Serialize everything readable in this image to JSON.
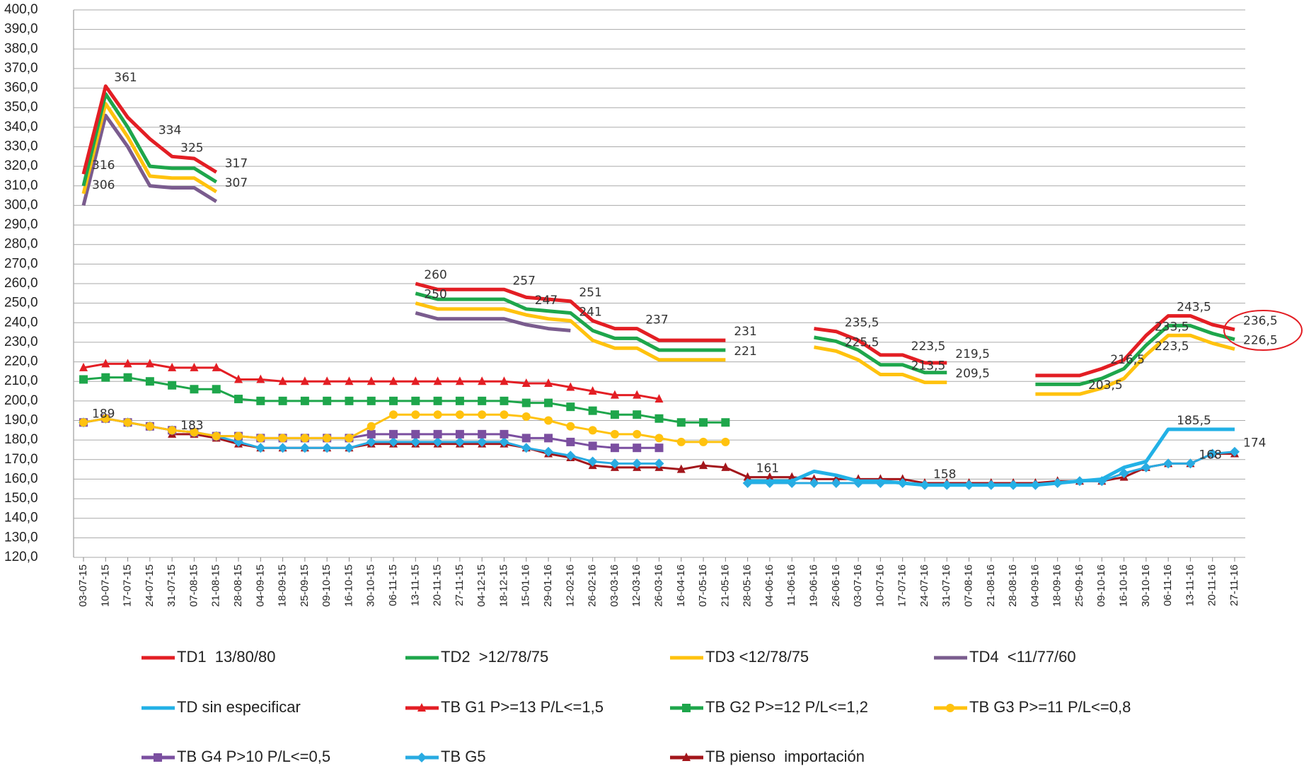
{
  "chart_data": {
    "type": "line",
    "grid": true,
    "categories": [
      "03-07-15",
      "10-07-15",
      "17-07-15",
      "24-07-15",
      "31-07-15",
      "07-08-15",
      "21-08-15",
      "28-08-15",
      "04-09-15",
      "18-09-15",
      "25-09-15",
      "09-10-15",
      "16-10-15",
      "30-10-15",
      "06-11-15",
      "13-11-15",
      "20-11-15",
      "27-11-15",
      "04-12-15",
      "18-12-15",
      "15-01-16",
      "29-01-16",
      "12-02-16",
      "26-02-16",
      "03-03-16",
      "12-03-16",
      "26-03-16",
      "16-04-16",
      "07-05-16",
      "21-05-16",
      "28-05-16",
      "04-06-16",
      "11-06-16",
      "19-06-16",
      "26-06-16",
      "03-07-16",
      "10-07-16",
      "17-07-16",
      "24-07-16",
      "31-07-16",
      "07-08-16",
      "21-08-16",
      "28-08-16",
      "04-09-16",
      "18-09-16",
      "25-09-16",
      "09-10-16",
      "16-10-16",
      "30-10-16",
      "06-11-16",
      "13-11-16",
      "20-11-16",
      "27-11-16"
    ],
    "ylim": [
      120,
      400
    ],
    "yticks": [
      {
        "value": 120,
        "label": "120,0"
      },
      {
        "value": 130,
        "label": "130,0"
      },
      {
        "value": 140,
        "label": "140,0"
      },
      {
        "value": 150,
        "label": "150,0"
      },
      {
        "value": 160,
        "label": "160,0"
      },
      {
        "value": 170,
        "label": "170,0"
      },
      {
        "value": 180,
        "label": "180,0"
      },
      {
        "value": 190,
        "label": "190,0"
      },
      {
        "value": 200,
        "label": "200,0"
      },
      {
        "value": 210,
        "label": "210,0"
      },
      {
        "value": 220,
        "label": "220,0"
      },
      {
        "value": 230,
        "label": "230,0"
      },
      {
        "value": 240,
        "label": "240,0"
      },
      {
        "value": 250,
        "label": "250,0"
      },
      {
        "value": 260,
        "label": "260,0"
      },
      {
        "value": 270,
        "label": "270,0"
      },
      {
        "value": 280,
        "label": "280,0"
      },
      {
        "value": 290,
        "label": "290,0"
      },
      {
        "value": 300,
        "label": "300,0"
      },
      {
        "value": 310,
        "label": "310,0"
      },
      {
        "value": 320,
        "label": "320,0"
      },
      {
        "value": 330,
        "label": "330,0"
      },
      {
        "value": 340,
        "label": "340,0"
      },
      {
        "value": 350,
        "label": "350,0"
      },
      {
        "value": 360,
        "label": "360,0"
      },
      {
        "value": 370,
        "label": "370,0"
      },
      {
        "value": 380,
        "label": "380,0"
      },
      {
        "value": 390,
        "label": "390,0"
      },
      {
        "value": 400,
        "label": "400,0"
      }
    ],
    "series": [
      {
        "name": "TD1  13/80/80",
        "color": "#e31e24",
        "marker": "none",
        "values": [
          316,
          361,
          345,
          334,
          325,
          324,
          317,
          null,
          null,
          null,
          null,
          null,
          null,
          null,
          null,
          260,
          257,
          257,
          257,
          257,
          253,
          252,
          251,
          241,
          237,
          237,
          231,
          231,
          231,
          231,
          null,
          null,
          null,
          237,
          235.5,
          231,
          223.5,
          223.5,
          219.5,
          219.5,
          null,
          null,
          null,
          213,
          213,
          213,
          216.5,
          221,
          233.5,
          243.5,
          243.5,
          239,
          236.5
        ],
        "value_labels": [
          "316",
          "361",
          null,
          "334",
          "325",
          null,
          "317",
          null,
          null,
          null,
          null,
          null,
          null,
          null,
          null,
          "260",
          null,
          null,
          null,
          "257",
          null,
          null,
          "251",
          null,
          null,
          "237",
          null,
          null,
          null,
          "231",
          null,
          null,
          null,
          null,
          "235,5",
          null,
          null,
          "223,5",
          null,
          "219,5",
          null,
          null,
          null,
          null,
          null,
          null,
          "216,5",
          null,
          "233,5",
          "243,5",
          null,
          null,
          "236,5"
        ]
      },
      {
        "name": "TD2  >12/78/75",
        "color": "#1ea64b",
        "marker": "none",
        "values": [
          310,
          357,
          340,
          320,
          319,
          319,
          312,
          null,
          null,
          null,
          null,
          null,
          null,
          null,
          null,
          255,
          252,
          252,
          252,
          252,
          247,
          246,
          245,
          236,
          232,
          232,
          226,
          226,
          226,
          226,
          null,
          null,
          null,
          232.5,
          230.5,
          226,
          218.5,
          218.5,
          214.5,
          214.5,
          null,
          null,
          null,
          208.5,
          208.5,
          208.5,
          211.5,
          216.5,
          228.5,
          238.5,
          238.5,
          234.5,
          231.5
        ],
        "value_labels": [
          null,
          null,
          null,
          null,
          null,
          null,
          null,
          null,
          null,
          null,
          null,
          null,
          null,
          null,
          null,
          null,
          null,
          null,
          null,
          null,
          "247",
          null,
          null,
          null,
          null,
          null,
          null,
          null,
          null,
          null,
          null,
          null,
          null,
          null,
          null,
          null,
          null,
          null,
          null,
          null,
          null,
          null,
          null,
          null,
          null,
          null,
          null,
          null,
          null,
          null,
          null,
          null,
          null
        ]
      },
      {
        "name": "TD3 <12/78/75",
        "color": "#ffc20e",
        "marker": "none",
        "values": [
          306,
          352,
          335,
          315,
          314,
          314,
          307,
          null,
          null,
          null,
          null,
          null,
          null,
          null,
          null,
          250,
          247,
          247,
          247,
          247,
          244,
          242,
          241,
          231,
          227,
          227,
          221,
          221,
          221,
          221,
          null,
          null,
          null,
          227.5,
          225.5,
          221,
          213.5,
          213.5,
          209.5,
          209.5,
          null,
          null,
          null,
          203.5,
          203.5,
          203.5,
          206.5,
          211.5,
          223.5,
          233.5,
          233.5,
          229.5,
          226.5
        ],
        "value_labels": [
          "306",
          null,
          null,
          null,
          null,
          null,
          "307",
          null,
          null,
          null,
          null,
          null,
          null,
          null,
          null,
          "250",
          null,
          null,
          null,
          null,
          null,
          null,
          "241",
          null,
          null,
          null,
          null,
          null,
          null,
          "221",
          null,
          null,
          null,
          null,
          "225,5",
          null,
          null,
          "213,5",
          null,
          "209,5",
          null,
          null,
          null,
          null,
          null,
          "203,5",
          null,
          null,
          "223,5",
          null,
          null,
          null,
          "226,5"
        ]
      },
      {
        "name": "TD4  <11/77/60",
        "color": "#7a5c8e",
        "marker": "none",
        "values": [
          300,
          346,
          330,
          310,
          309,
          309,
          302,
          null,
          null,
          null,
          null,
          null,
          null,
          null,
          null,
          245,
          242,
          242,
          242,
          242,
          239,
          237,
          236,
          null,
          null,
          null,
          null,
          null,
          null,
          null,
          null,
          null,
          null,
          null,
          null,
          null,
          null,
          null,
          null,
          null,
          null,
          null,
          null,
          null,
          null,
          null,
          null,
          null,
          null,
          null,
          null,
          null,
          null
        ]
      },
      {
        "name": "TD sin especificar",
        "color": "#22b1e6",
        "marker": "none",
        "values": [
          null,
          null,
          null,
          null,
          null,
          null,
          null,
          null,
          null,
          null,
          null,
          null,
          null,
          null,
          null,
          null,
          null,
          null,
          null,
          null,
          null,
          null,
          null,
          null,
          null,
          null,
          null,
          null,
          null,
          null,
          159,
          159,
          159,
          164,
          162,
          159,
          159,
          158,
          157,
          157,
          157,
          157,
          157,
          157,
          158,
          159,
          160,
          166,
          169,
          185.5,
          185.5,
          185.5,
          185.5
        ],
        "value_labels": [
          null,
          null,
          null,
          null,
          null,
          null,
          null,
          null,
          null,
          null,
          null,
          null,
          null,
          null,
          null,
          null,
          null,
          null,
          null,
          null,
          null,
          null,
          null,
          null,
          null,
          null,
          null,
          null,
          null,
          null,
          null,
          null,
          null,
          null,
          null,
          null,
          null,
          null,
          null,
          null,
          null,
          null,
          null,
          null,
          null,
          null,
          null,
          null,
          null,
          "185,5",
          null,
          null,
          null
        ]
      },
      {
        "name": "TB G1 P>=13 P/L<=1,5",
        "color": "#e31e24",
        "marker": "triangle",
        "values": [
          217,
          219,
          219,
          219,
          217,
          217,
          217,
          211,
          211,
          210,
          210,
          210,
          210,
          210,
          210,
          210,
          210,
          210,
          210,
          210,
          209,
          209,
          207,
          205,
          203,
          203,
          201,
          null,
          null,
          null,
          null,
          null,
          null,
          null,
          null,
          null,
          null,
          null,
          null,
          null,
          null,
          null,
          null,
          null,
          null,
          null,
          null,
          null,
          null,
          null,
          null,
          null,
          null
        ]
      },
      {
        "name": "TB G2 P>=12 P/L<=1,2",
        "color": "#1ea64b",
        "marker": "square",
        "values": [
          211,
          212,
          212,
          210,
          208,
          206,
          206,
          201,
          200,
          200,
          200,
          200,
          200,
          200,
          200,
          200,
          200,
          200,
          200,
          200,
          199,
          199,
          197,
          195,
          193,
          193,
          191,
          189,
          189,
          189,
          null,
          null,
          null,
          null,
          null,
          null,
          null,
          null,
          null,
          null,
          null,
          null,
          null,
          null,
          null,
          null,
          null,
          null,
          null,
          null,
          null,
          null,
          null
        ]
      },
      {
        "name": "TB G3 P>=11 P/L<=0,8",
        "color": "#ffc20e",
        "marker": "circle",
        "values": [
          189,
          191,
          189,
          187,
          185,
          184,
          182,
          182,
          181,
          181,
          181,
          181,
          181,
          187,
          193,
          193,
          193,
          193,
          193,
          193,
          192,
          190,
          187,
          185,
          183,
          183,
          181,
          179,
          179,
          179,
          null,
          null,
          null,
          null,
          null,
          null,
          null,
          null,
          null,
          null,
          null,
          null,
          null,
          null,
          null,
          null,
          null,
          null,
          null,
          null,
          null,
          null,
          null
        ]
      },
      {
        "name": "TB G4 P>10 P/L<=0,5",
        "color": "#7b4fa0",
        "marker": "square",
        "values": [
          189,
          191,
          189,
          187,
          185,
          184,
          182,
          182,
          181,
          181,
          181,
          181,
          181,
          183,
          183,
          183,
          183,
          183,
          183,
          183,
          181,
          181,
          179,
          177,
          176,
          176,
          176,
          null,
          null,
          null,
          null,
          null,
          null,
          null,
          null,
          null,
          null,
          null,
          null,
          null,
          null,
          null,
          null,
          null,
          null,
          null,
          null,
          null,
          null,
          null,
          null,
          null,
          null
        ]
      },
      {
        "name": "TB G5",
        "color": "#29abe2",
        "marker": "diamond",
        "values": [
          189,
          191,
          189,
          187,
          185,
          184,
          182,
          179,
          176,
          176,
          176,
          176,
          176,
          179,
          179,
          179,
          179,
          179,
          179,
          179,
          176,
          174,
          172,
          169,
          168,
          168,
          168,
          null,
          null,
          null,
          158,
          158,
          158,
          158,
          158,
          158,
          158,
          158,
          157,
          157,
          157,
          157,
          157,
          157,
          158,
          159,
          159,
          163,
          166,
          168,
          168,
          173,
          174
        ],
        "value_labels": [
          "189",
          null,
          null,
          null,
          null,
          null,
          null,
          null,
          null,
          null,
          null,
          null,
          null,
          null,
          null,
          null,
          null,
          null,
          null,
          null,
          null,
          null,
          null,
          null,
          null,
          null,
          null,
          null,
          null,
          null,
          null,
          null,
          null,
          null,
          null,
          null,
          null,
          null,
          null,
          null,
          null,
          null,
          null,
          null,
          null,
          null,
          null,
          null,
          null,
          null,
          null,
          null,
          "174"
        ]
      },
      {
        "name": "TB pienso  importación",
        "color": "#a3161b",
        "marker": "triangle",
        "values": [
          null,
          null,
          null,
          null,
          183,
          183,
          181,
          178,
          176,
          176,
          176,
          176,
          176,
          178,
          178,
          178,
          178,
          178,
          178,
          178,
          176,
          173,
          171,
          167,
          166,
          166,
          166,
          165,
          167,
          166,
          161,
          161,
          161,
          160,
          160,
          160,
          160,
          160,
          158,
          158,
          158,
          158,
          158,
          158,
          159,
          159,
          159,
          161,
          166,
          168,
          168,
          173,
          173
        ],
        "value_labels": [
          null,
          null,
          null,
          null,
          "183",
          null,
          null,
          null,
          null,
          null,
          null,
          null,
          null,
          null,
          null,
          null,
          null,
          null,
          null,
          null,
          null,
          null,
          null,
          null,
          null,
          null,
          null,
          null,
          null,
          null,
          "161",
          null,
          null,
          null,
          null,
          null,
          null,
          null,
          "158",
          null,
          null,
          null,
          null,
          null,
          null,
          null,
          null,
          null,
          null,
          null,
          "168",
          null,
          null
        ]
      }
    ]
  }
}
